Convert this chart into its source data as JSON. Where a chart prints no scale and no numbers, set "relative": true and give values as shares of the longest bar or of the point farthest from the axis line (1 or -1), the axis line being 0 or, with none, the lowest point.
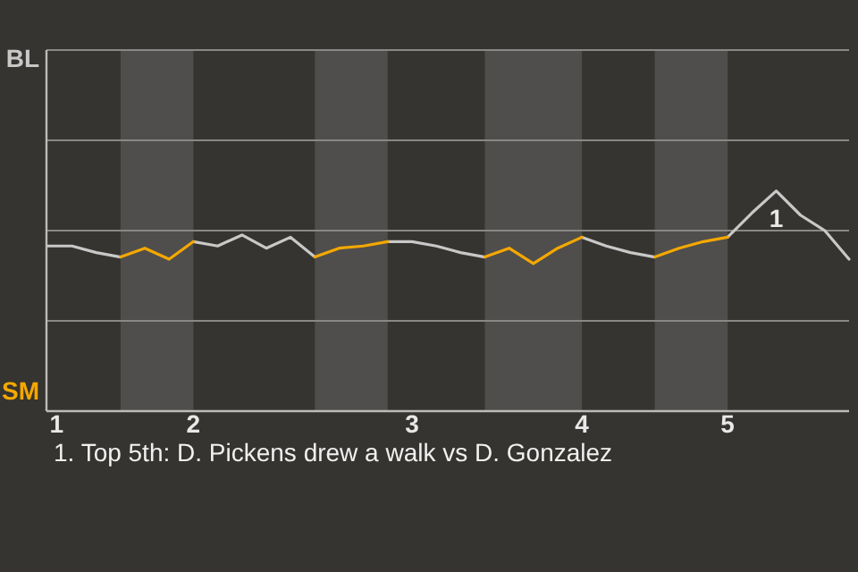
{
  "chart_data": {
    "type": "line",
    "relative": true,
    "categories": [
      "1",
      null,
      null,
      null,
      null,
      null,
      "2",
      null,
      null,
      null,
      null,
      null,
      null,
      null,
      null,
      "3",
      null,
      null,
      null,
      null,
      null,
      null,
      "4",
      null,
      null,
      null,
      null,
      null,
      "5",
      null,
      null,
      null,
      null,
      null
    ],
    "marker": "none",
    "line_style": "solid",
    "ref_lines": [
      {
        "axis": "y",
        "value": 0.41,
        "color": "#8a8886"
      },
      {
        "axis": "y",
        "value": 0.82,
        "color": "#8a8886"
      },
      {
        "axis": "y",
        "value": 1.23,
        "color": "#8a8886"
      },
      {
        "axis": "y",
        "value": 1.64,
        "color": "#8a8886"
      }
    ],
    "series": [
      {
        "color": "#c8c8c8",
        "values": [
          0.75,
          0.75,
          0.72,
          0.7,
          null,
          null,
          0.77,
          0.75,
          0.8,
          0.74,
          0.79,
          0.7,
          null,
          null,
          0.77,
          0.77,
          0.75,
          0.72,
          0.7,
          null,
          null,
          null,
          0.79,
          0.75,
          0.72,
          0.7,
          null,
          null,
          0.79,
          0.9,
          1,
          0.89,
          0.82,
          0.69
        ]
      },
      {
        "color": "#f5a800",
        "values": [
          null,
          null,
          null,
          0.7,
          0.74,
          0.69,
          0.77,
          null,
          null,
          null,
          null,
          0.7,
          0.74,
          0.75,
          0.77,
          null,
          null,
          null,
          0.7,
          0.74,
          0.67,
          0.74,
          0.79,
          null,
          null,
          0.7,
          0.74,
          0.77,
          0.79,
          null,
          null,
          null,
          null,
          null
        ]
      }
    ],
    "annotations": [
      "BL",
      "SM",
      {
        "text": "1",
        "y": 1
      },
      "1. Top 5th: D. Pickens drew a walk vs D. Gonzalez"
    ]
  }
}
